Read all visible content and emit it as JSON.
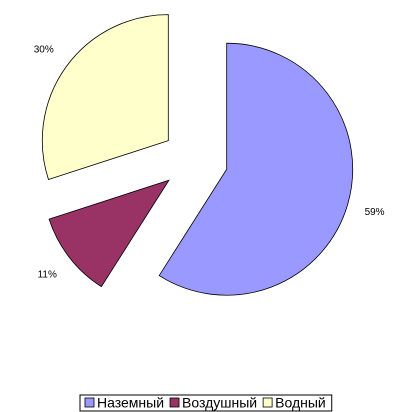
{
  "chart_data": {
    "type": "pie",
    "categories": [
      "Наземный",
      "Воздушный",
      "Водный"
    ],
    "values": [
      59,
      11,
      30
    ],
    "value_labels": [
      "59%",
      "11%",
      "30%"
    ],
    "colors": [
      "#9999ff",
      "#993366",
      "#ffffcc"
    ],
    "exploded": true,
    "legend": "bottom"
  }
}
